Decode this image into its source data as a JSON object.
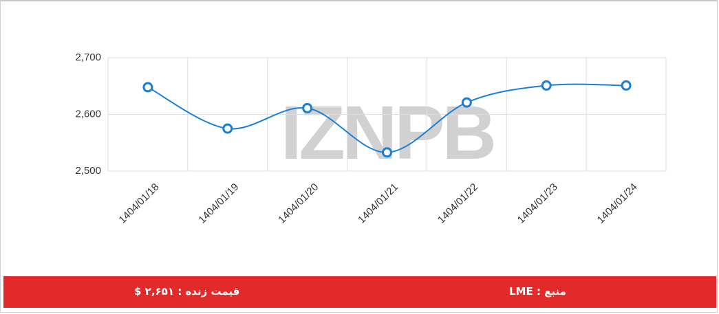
{
  "chart_data": {
    "type": "line",
    "watermark": "IZNPB",
    "categories": [
      "1404/01/18",
      "1404/01/19",
      "1404/01/20",
      "1404/01/21",
      "1404/01/22",
      "1404/01/23",
      "1404/01/24"
    ],
    "values": [
      2648,
      2575,
      2611,
      2533,
      2621,
      2651,
      2651
    ],
    "color": "#1a7fd6",
    "ylim": [
      2500,
      2700
    ],
    "yticks": [
      {
        "value": 2500,
        "label": "2,500"
      },
      {
        "value": 2600,
        "label": "2,600"
      },
      {
        "value": 2700,
        "label": "2,700"
      }
    ],
    "grid": true
  },
  "footer": {
    "live_price": "قیمت زنده : ۲,۶۵۱ $",
    "source": "منبع : LME"
  }
}
